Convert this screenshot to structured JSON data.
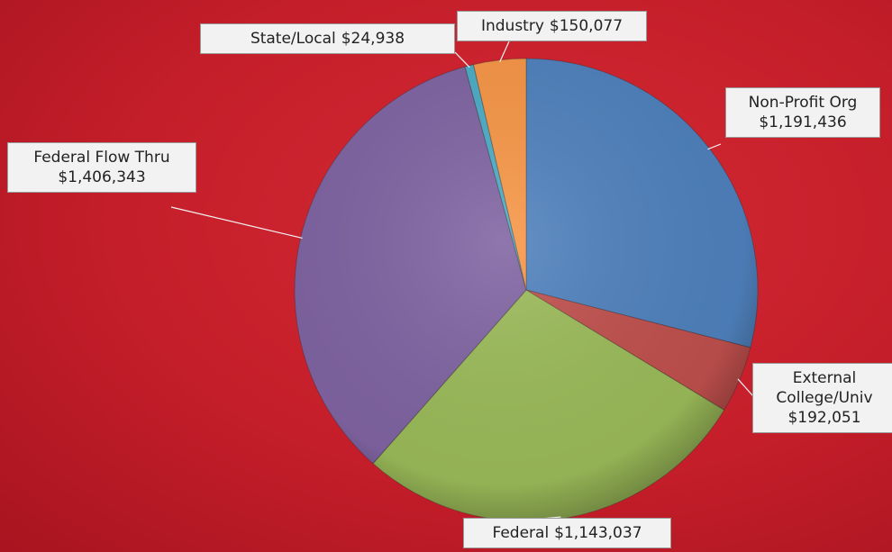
{
  "chart_data": {
    "type": "pie",
    "categories": [
      "Non-Profit Org",
      "External College/Univ",
      "Federal",
      "Federal Flow Thru",
      "State/Local",
      "Industry"
    ],
    "values": [
      1191436,
      192051,
      1143037,
      1406343,
      24938,
      150077
    ],
    "value_labels": [
      "$1,191,436",
      "$192,051",
      "$1,143,037",
      "$1,406,343",
      "$24,938",
      "$150,077"
    ],
    "colors": [
      "#4f81bd",
      "#c0504d",
      "#9bbb59",
      "#8064a2",
      "#4bacc6",
      "#f79646"
    ]
  }
}
